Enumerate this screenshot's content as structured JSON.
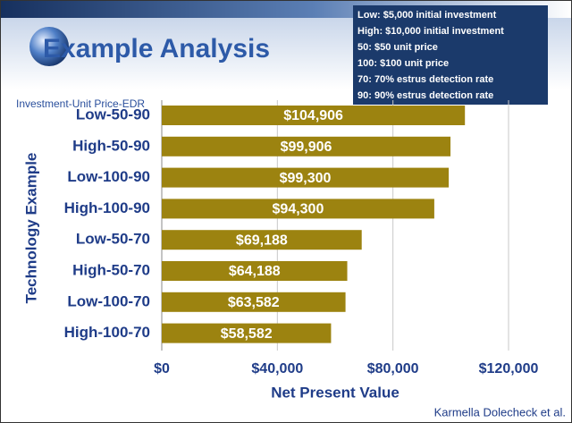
{
  "chart_data": {
    "type": "bar",
    "orientation": "horizontal",
    "title": "Example Analysis",
    "legend_title": "Investment-Unit Price-EDR",
    "categories": [
      "Low-50-90",
      "High-50-90",
      "Low-100-90",
      "High-100-90",
      "Low-50-70",
      "High-50-70",
      "Low-100-70",
      "High-100-70"
    ],
    "values": [
      104906,
      99906,
      99300,
      94300,
      69188,
      64188,
      63582,
      58582
    ],
    "value_labels": [
      "$104,906",
      "$99,906",
      "$99,300",
      "$94,300",
      "$69,188",
      "$64,188",
      "$63,582",
      "$58,582"
    ],
    "color": "#9c8310",
    "xlim": [
      0,
      120000
    ],
    "xticks": [
      {
        "value": 0,
        "label": "$0"
      },
      {
        "value": 40000,
        "label": "$40,000"
      },
      {
        "value": 80000,
        "label": "$80,000"
      },
      {
        "value": 120000,
        "label": "$120,000"
      }
    ],
    "x_label": "Net Present Value",
    "y_label": "Technology Example",
    "grid": true
  },
  "key_box": [
    "Low: $5,000 initial investment",
    "High: $10,000 initial investment",
    "50: $50 unit price",
    "100: $100 unit price",
    "70: 70% estrus detection rate",
    "90: 90% estrus detection rate"
  ],
  "footer": "Karmella Dolecheck et al."
}
